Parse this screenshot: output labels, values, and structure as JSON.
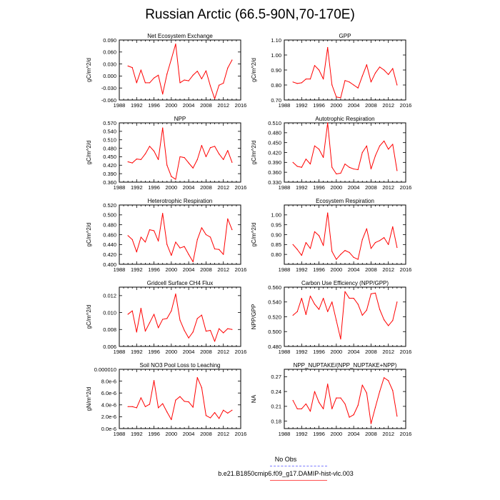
{
  "title": "Russian Arctic (66.5-90N,70-170E)",
  "colors": {
    "model_line": "#ff0000",
    "obs_line": "#6b6bff",
    "axis": "#000000"
  },
  "legend": {
    "obs_label": "No Obs",
    "model_label": "b.e21.B1850cmip6.f09_g17.DAMIP-hist-vlc.003"
  },
  "chart_data": [
    {
      "type": "line",
      "title": "Net Ecosystem Exchange",
      "ylabel": "gC/m^2/d",
      "xlim": [
        1988,
        2016
      ],
      "ylim": [
        -0.06,
        0.09
      ],
      "xticks": [
        "1988",
        "1992",
        "1996",
        "2000",
        "2004",
        "2008",
        "2012",
        "2016"
      ],
      "yticks": [
        "-0.060",
        "-0.030",
        "0.000",
        "0.030",
        "0.060",
        "0.090"
      ],
      "x": [
        1990,
        1991,
        1992,
        1993,
        1994,
        1995,
        1996,
        1997,
        1998,
        1999,
        2000,
        2001,
        2002,
        2003,
        2004,
        2005,
        2006,
        2007,
        2008,
        2009,
        2010,
        2011,
        2012,
        2013,
        2014
      ],
      "values": [
        0.025,
        0.021,
        -0.017,
        0.015,
        -0.017,
        -0.017,
        -0.005,
        0.002,
        -0.045,
        0.005,
        0.042,
        0.08,
        -0.017,
        -0.01,
        -0.012,
        0.002,
        0.012,
        -0.007,
        0.013,
        -0.025,
        -0.057,
        -0.023,
        -0.018,
        0.02,
        0.04
      ]
    },
    {
      "type": "line",
      "title": "GPP",
      "ylabel": "gC/m^2/d",
      "xlim": [
        1988,
        2016
      ],
      "ylim": [
        0.7,
        1.1
      ],
      "xticks": [
        "1988",
        "1992",
        "1996",
        "2000",
        "2004",
        "2008",
        "2012",
        "2016"
      ],
      "yticks": [
        "0.70",
        "0.80",
        "0.90",
        "1.00",
        "1.10"
      ],
      "x": [
        1990,
        1991,
        1992,
        1993,
        1994,
        1995,
        1996,
        1997,
        1998,
        1999,
        2000,
        2001,
        2002,
        2003,
        2004,
        2005,
        2006,
        2007,
        2008,
        2009,
        2010,
        2011,
        2012,
        2013,
        2014
      ],
      "values": [
        0.82,
        0.81,
        0.815,
        0.84,
        0.84,
        0.93,
        0.9,
        0.84,
        1.05,
        0.8,
        0.72,
        0.715,
        0.83,
        0.82,
        0.8,
        0.78,
        0.86,
        0.935,
        0.82,
        0.88,
        0.92,
        0.9,
        0.87,
        0.91,
        0.8
      ]
    },
    {
      "type": "line",
      "title": "NPP",
      "ylabel": "gC/m^2/d",
      "xlim": [
        1988,
        2016
      ],
      "ylim": [
        0.36,
        0.57
      ],
      "xticks": [
        "1988",
        "1992",
        "1996",
        "2000",
        "2004",
        "2008",
        "2012",
        "2016"
      ],
      "yticks": [
        "0.360",
        "0.390",
        "0.420",
        "0.450",
        "0.480",
        "0.510",
        "0.540",
        "0.570"
      ],
      "x": [
        1990,
        1991,
        1992,
        1993,
        1994,
        1995,
        1996,
        1997,
        1998,
        1999,
        2000,
        2001,
        2002,
        2003,
        2004,
        2005,
        2006,
        2007,
        2008,
        2009,
        2010,
        2011,
        2012,
        2013,
        2014
      ],
      "values": [
        0.432,
        0.428,
        0.442,
        0.44,
        0.46,
        0.487,
        0.47,
        0.44,
        0.552,
        0.42,
        0.38,
        0.37,
        0.45,
        0.447,
        0.428,
        0.41,
        0.44,
        0.49,
        0.45,
        0.482,
        0.487,
        0.46,
        0.44,
        0.472,
        0.43
      ]
    },
    {
      "type": "line",
      "title": "Autotrophic Respiration",
      "ylabel": "gC/m^2/d",
      "xlim": [
        1988,
        2016
      ],
      "ylim": [
        0.33,
        0.51
      ],
      "xticks": [
        "1988",
        "1992",
        "1996",
        "2000",
        "2004",
        "2008",
        "2012",
        "2016"
      ],
      "yticks": [
        "0.330",
        "0.360",
        "0.390",
        "0.420",
        "0.450",
        "0.480",
        "0.510"
      ],
      "x": [
        1990,
        1991,
        1992,
        1993,
        1994,
        1995,
        1996,
        1997,
        1998,
        1999,
        2000,
        2001,
        2002,
        2003,
        2004,
        2005,
        2006,
        2007,
        2008,
        2009,
        2010,
        2011,
        2012,
        2013,
        2014
      ],
      "values": [
        0.39,
        0.378,
        0.375,
        0.4,
        0.385,
        0.44,
        0.43,
        0.405,
        0.51,
        0.375,
        0.355,
        0.357,
        0.385,
        0.375,
        0.37,
        0.368,
        0.42,
        0.44,
        0.37,
        0.41,
        0.44,
        0.455,
        0.43,
        0.445,
        0.365
      ]
    },
    {
      "type": "line",
      "title": "Heterotrophic Respiration",
      "ylabel": "gC/m^2/d",
      "xlim": [
        1988,
        2016
      ],
      "ylim": [
        0.4,
        0.52
      ],
      "xticks": [
        "1988",
        "1992",
        "1996",
        "2000",
        "2004",
        "2008",
        "2012",
        "2016"
      ],
      "yticks": [
        "0.400",
        "0.420",
        "0.440",
        "0.460",
        "0.480",
        "0.500",
        "0.520"
      ],
      "x": [
        1990,
        1991,
        1992,
        1993,
        1994,
        1995,
        1996,
        1997,
        1998,
        1999,
        2000,
        2001,
        2002,
        2003,
        2004,
        2005,
        2006,
        2007,
        2008,
        2009,
        2010,
        2011,
        2012,
        2013,
        2014
      ],
      "values": [
        0.458,
        0.45,
        0.425,
        0.455,
        0.445,
        0.47,
        0.468,
        0.447,
        0.503,
        0.44,
        0.418,
        0.445,
        0.433,
        0.436,
        0.42,
        0.405,
        0.45,
        0.474,
        0.46,
        0.455,
        0.431,
        0.43,
        0.42,
        0.492,
        0.47
      ]
    },
    {
      "type": "line",
      "title": "Ecosystem Respiration",
      "ylabel": "gC/m^2/d",
      "xlim": [
        1988,
        2016
      ],
      "ylim": [
        0.75,
        1.05
      ],
      "xticks": [
        "1988",
        "1992",
        "1996",
        "2000",
        "2004",
        "2008",
        "2012",
        "2016"
      ],
      "yticks": [
        "0.80",
        "0.85",
        "0.90",
        "0.95",
        "1.00"
      ],
      "x": [
        1990,
        1991,
        1992,
        1993,
        1994,
        1995,
        1996,
        1997,
        1998,
        1999,
        2000,
        2001,
        2002,
        2003,
        2004,
        2005,
        2006,
        2007,
        2008,
        2009,
        2010,
        2011,
        2012,
        2013,
        2014
      ],
      "values": [
        0.85,
        0.825,
        0.795,
        0.86,
        0.83,
        0.915,
        0.895,
        0.845,
        1.01,
        0.815,
        0.775,
        0.8,
        0.82,
        0.81,
        0.785,
        0.775,
        0.875,
        0.93,
        0.83,
        0.86,
        0.87,
        0.885,
        0.85,
        0.94,
        0.835
      ]
    },
    {
      "type": "line",
      "title": "Gridcell Surface CH4 Flux",
      "ylabel": "gC/m^2/d",
      "xlim": [
        1988,
        2016
      ],
      "ylim": [
        0.006,
        0.013
      ],
      "xticks": [
        "1988",
        "1992",
        "1996",
        "2000",
        "2004",
        "2008",
        "2012",
        "2016"
      ],
      "yticks": [
        "0.006",
        "0.008",
        "0.010",
        "0.012"
      ],
      "x": [
        1990,
        1991,
        1992,
        1993,
        1994,
        1995,
        1996,
        1997,
        1998,
        1999,
        2000,
        2001,
        2002,
        2003,
        2004,
        2005,
        2006,
        2007,
        2008,
        2009,
        2010,
        2011,
        2012,
        2013,
        2014
      ],
      "values": [
        0.0098,
        0.0102,
        0.0077,
        0.0105,
        0.0078,
        0.0088,
        0.0098,
        0.0082,
        0.0092,
        0.0093,
        0.0102,
        0.0122,
        0.0091,
        0.0079,
        0.007,
        0.0077,
        0.0093,
        0.0097,
        0.0078,
        0.0079,
        0.0066,
        0.0081,
        0.0076,
        0.0081,
        0.008
      ]
    },
    {
      "type": "line",
      "title": "Carbon Use Efficiency (NPP/GPP)",
      "ylabel": "NPP/GPP",
      "xlim": [
        1988,
        2016
      ],
      "ylim": [
        0.48,
        0.56
      ],
      "xticks": [
        "1988",
        "1992",
        "1996",
        "2000",
        "2004",
        "2008",
        "2012",
        "2016"
      ],
      "yticks": [
        "0.480",
        "0.500",
        "0.520",
        "0.540",
        "0.560"
      ],
      "x": [
        1990,
        1991,
        1992,
        1993,
        1994,
        1995,
        1996,
        1997,
        1998,
        1999,
        2000,
        2001,
        2002,
        2003,
        2004,
        2005,
        2006,
        2007,
        2008,
        2009,
        2010,
        2011,
        2012,
        2013,
        2014
      ],
      "values": [
        0.522,
        0.527,
        0.545,
        0.523,
        0.548,
        0.537,
        0.53,
        0.545,
        0.527,
        0.54,
        0.515,
        0.49,
        0.554,
        0.545,
        0.545,
        0.537,
        0.522,
        0.529,
        0.551,
        0.552,
        0.53,
        0.516,
        0.508,
        0.515,
        0.54
      ]
    },
    {
      "type": "line",
      "title": "Soil NO3 Pool Loss to Leaching",
      "ylabel": "gN/m^2/d",
      "xlim": [
        1988,
        2016
      ],
      "ylim": [
        0,
        1e-05
      ],
      "xticks": [
        "1988",
        "1992",
        "1996",
        "2000",
        "2004",
        "2008",
        "2012",
        "2016"
      ],
      "yticks": [
        "0.0e-6",
        "2.0e-6",
        "4.0e-6",
        "6.0e-6",
        "8.0e-6",
        "0.000010"
      ],
      "x": [
        1990,
        1991,
        1992,
        1993,
        1994,
        1995,
        1996,
        1997,
        1998,
        1999,
        2000,
        2001,
        2002,
        2003,
        2004,
        2005,
        2006,
        2007,
        2008,
        2009,
        2010,
        2011,
        2012,
        2013,
        2014
      ],
      "values": [
        3.7e-06,
        3.7e-06,
        3.5e-06,
        5.2e-06,
        3.7e-06,
        4.1e-06,
        8.1e-06,
        3.5e-06,
        4.2e-06,
        2.8e-06,
        1.5e-06,
        4.8e-06,
        5.4e-06,
        4.6e-06,
        4.5e-06,
        3.6e-06,
        8.6e-06,
        6.9e-06,
        2.2e-06,
        1.8e-06,
        2.7e-06,
        1.7e-06,
        3.1e-06,
        2.6e-06,
        3.1e-06
      ]
    },
    {
      "type": "line",
      "title": "NPP_NUPTAKE/(NPP_NUPTAKE+NPP)",
      "ylabel": "NA",
      "xlim": [
        1988,
        2016
      ],
      "ylim": [
        0.165,
        0.285
      ],
      "xticks": [
        "1988",
        "1992",
        "1996",
        "2000",
        "2004",
        "2008",
        "2012",
        "2016"
      ],
      "yticks": [
        "0.18",
        "0.21",
        "0.24",
        "0.27"
      ],
      "x": [
        1990,
        1991,
        1992,
        1993,
        1994,
        1995,
        1996,
        1997,
        1998,
        1999,
        2000,
        2001,
        2002,
        2003,
        2004,
        2005,
        2006,
        2007,
        2008,
        2009,
        2010,
        2011,
        2012,
        2013,
        2014
      ],
      "values": [
        0.222,
        0.205,
        0.205,
        0.215,
        0.2,
        0.24,
        0.218,
        0.205,
        0.255,
        0.205,
        0.227,
        0.227,
        0.215,
        0.188,
        0.193,
        0.212,
        0.253,
        0.237,
        0.175,
        0.208,
        0.24,
        0.268,
        0.262,
        0.242,
        0.19
      ]
    }
  ]
}
